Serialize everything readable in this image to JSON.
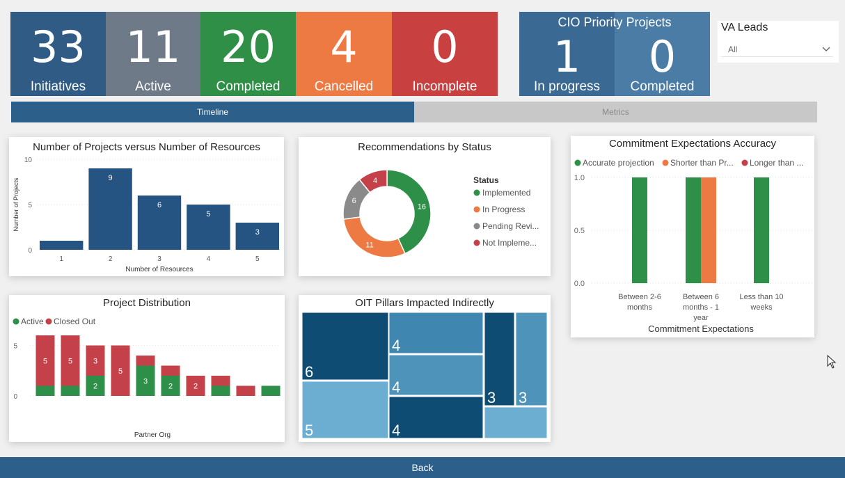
{
  "kpis": [
    {
      "value": "33",
      "label": "Initiatives",
      "color": "#2f5b84"
    },
    {
      "value": "11",
      "label": "Active",
      "color": "#6e7a87"
    },
    {
      "value": "20",
      "label": "Completed",
      "color": "#2f8f46"
    },
    {
      "value": "4",
      "label": "Cancelled",
      "color": "#ee7a43"
    },
    {
      "value": "0",
      "label": "Incomplete",
      "color": "#c84040"
    }
  ],
  "cio": {
    "title": "CIO Priority Projects",
    "items": [
      {
        "value": "1",
        "label": "In progress",
        "color": "#3a6a94"
      },
      {
        "value": "0",
        "label": "Completed",
        "color": "#4a7ca6"
      }
    ]
  },
  "slicer": {
    "title": "VA Leads",
    "value": "All"
  },
  "tabs": {
    "timeline": "Timeline",
    "metrics": "Metrics"
  },
  "back_label": "Back",
  "colors": {
    "navy": "#255482",
    "green": "#2e8f48",
    "orange": "#ee7a43",
    "gray": "#8a8a8a",
    "red": "#c4414a"
  },
  "chart_data": [
    {
      "type": "bar",
      "title": "Number of Projects versus Number of Resources",
      "xlabel": "Number of Resources",
      "ylabel": "Number of Projects",
      "categories": [
        "1",
        "2",
        "3",
        "4",
        "5"
      ],
      "values": [
        1,
        9,
        6,
        5,
        3
      ],
      "data_labels": [
        "",
        "9",
        "6",
        "5",
        "3"
      ],
      "yticks": [
        "0",
        "5",
        "10"
      ],
      "ylim": [
        0,
        10
      ]
    },
    {
      "type": "pie",
      "title": "Recommendations by Status",
      "legend_title": "Status",
      "legend": [
        "Implemented",
        "In Progress",
        "Pending Revi...",
        "Not Impleme..."
      ],
      "values": [
        16,
        11,
        6,
        4
      ]
    },
    {
      "type": "bar",
      "title": "Commitment Expectations Accuracy",
      "xlabel": "Commitment Expectations",
      "legend": [
        "Accurate projection",
        "Shorter than Pr...",
        "Longer than ..."
      ],
      "categories": [
        "Between 2-6 months",
        "Between 6 months - 1 year",
        "Less than 10 weeks"
      ],
      "category_lines": [
        [
          "Between 2-6",
          "months"
        ],
        [
          "Between 6",
          "months - 1",
          "year"
        ],
        [
          "Less than 10",
          "weeks"
        ]
      ],
      "series": [
        {
          "name": "Accurate projection",
          "values": [
            1,
            1,
            1
          ]
        },
        {
          "name": "Shorter than Pr...",
          "values": [
            0,
            1,
            0
          ]
        }
      ],
      "yticks": [
        "0.0",
        "0.5",
        "1.0"
      ],
      "ylim": [
        0,
        1.0
      ]
    },
    {
      "type": "bar",
      "title": "Project Distribution",
      "xlabel": "Partner Org",
      "legend": [
        "Active",
        "Closed Out"
      ],
      "series": [
        {
          "name": "Active",
          "values": [
            1,
            1,
            2,
            0,
            3,
            2,
            0,
            1,
            0,
            1
          ],
          "labels": [
            "",
            "",
            "2",
            "",
            "3",
            "2",
            "",
            "",
            "",
            ""
          ]
        },
        {
          "name": "Closed Out",
          "values": [
            5,
            5,
            3,
            5,
            1,
            1,
            2,
            1,
            1,
            0
          ],
          "labels": [
            "5",
            "5",
            "3",
            "5",
            "",
            "",
            "2",
            "",
            "",
            ""
          ]
        }
      ],
      "yticks": [
        "0",
        "5"
      ],
      "ylim": [
        0,
        6
      ]
    },
    {
      "type": "heatmap",
      "title": "OIT Pillars Impacted Indirectly",
      "tiles": [
        {
          "value": "6",
          "shade": "#0f4c74"
        },
        {
          "value": "5",
          "shade": "#6baed1"
        },
        {
          "value": "4",
          "shade": "#3f87b0"
        },
        {
          "value": "4",
          "shade": "#4d93ba"
        },
        {
          "value": "4",
          "shade": "#0f4c74"
        },
        {
          "value": "3",
          "shade": "#0f4c74"
        },
        {
          "value": "3",
          "shade": "#4d93ba"
        },
        {
          "value": "",
          "shade": "#6baed1"
        }
      ]
    }
  ]
}
